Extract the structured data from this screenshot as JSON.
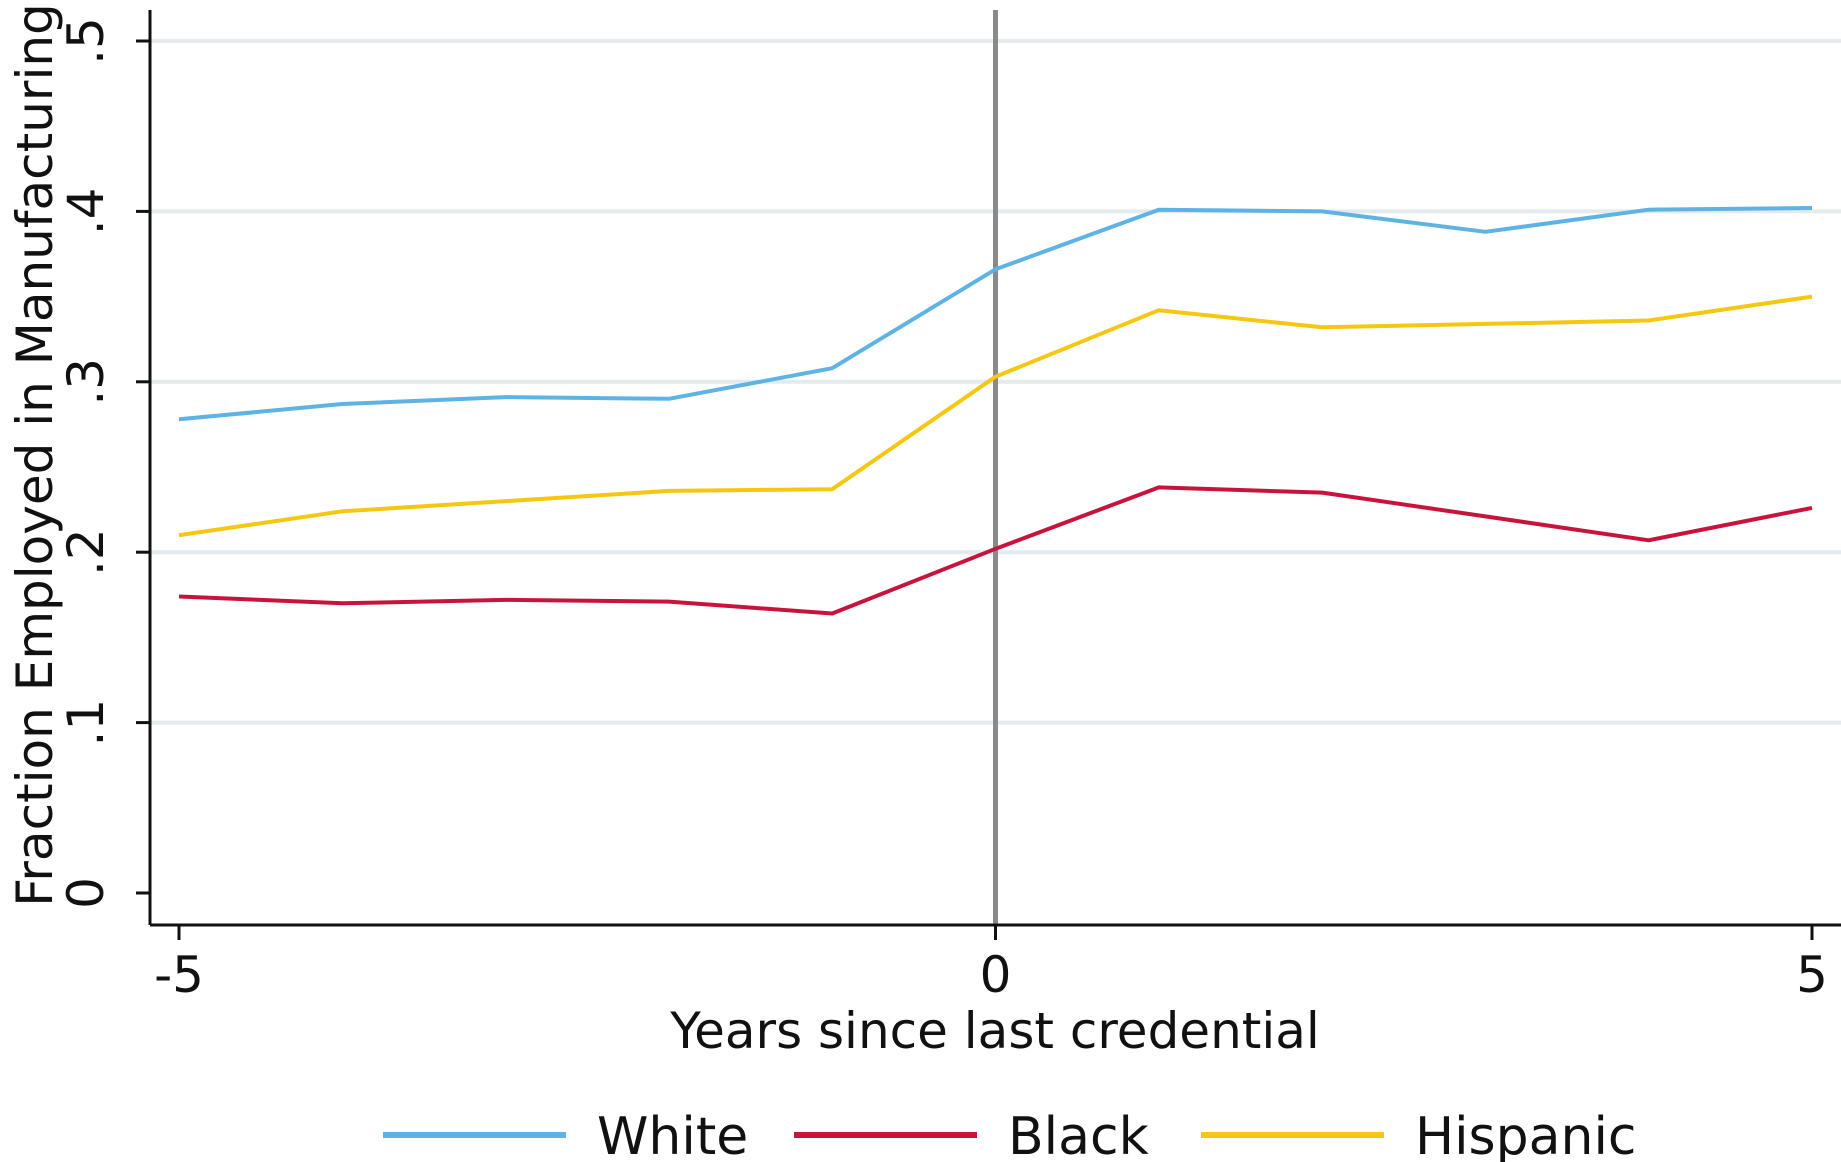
{
  "chart_data": {
    "type": "line",
    "title": "",
    "xlabel": "Years since last credential",
    "ylabel": "Fraction Employed in Manufacturing",
    "xlim": [
      -5,
      5
    ],
    "ylim": [
      0,
      0.5
    ],
    "x": [
      -5,
      -4,
      -3,
      -2,
      -1,
      0,
      1,
      2,
      3,
      4,
      5
    ],
    "x_ticks": [
      {
        "value": -5,
        "label": "-5"
      },
      {
        "value": 0,
        "label": "0"
      },
      {
        "value": 5,
        "label": "5"
      }
    ],
    "y_ticks": [
      {
        "value": 0,
        "label": "0"
      },
      {
        "value": 0.1,
        "label": ".1"
      },
      {
        "value": 0.2,
        "label": ".2"
      },
      {
        "value": 0.3,
        "label": ".3"
      },
      {
        "value": 0.4,
        "label": ".4"
      },
      {
        "value": 0.5,
        "label": ".5"
      }
    ],
    "grid": true,
    "vertical_line_at": 0,
    "legend_position": "bottom",
    "series": [
      {
        "name": "White",
        "color": "#5eb3e4",
        "values": [
          0.278,
          0.287,
          0.291,
          0.29,
          0.308,
          0.366,
          0.401,
          0.4,
          0.388,
          0.401,
          0.402
        ]
      },
      {
        "name": "Black",
        "color": "#c8143c",
        "values": [
          0.174,
          0.17,
          0.172,
          0.171,
          0.164,
          0.202,
          0.238,
          0.235,
          0.221,
          0.207,
          0.226
        ]
      },
      {
        "name": "Hispanic",
        "color": "#f5c710",
        "values": [
          0.21,
          0.224,
          0.23,
          0.236,
          0.237,
          0.303,
          0.342,
          0.332,
          0.334,
          0.336,
          0.35
        ]
      }
    ]
  }
}
